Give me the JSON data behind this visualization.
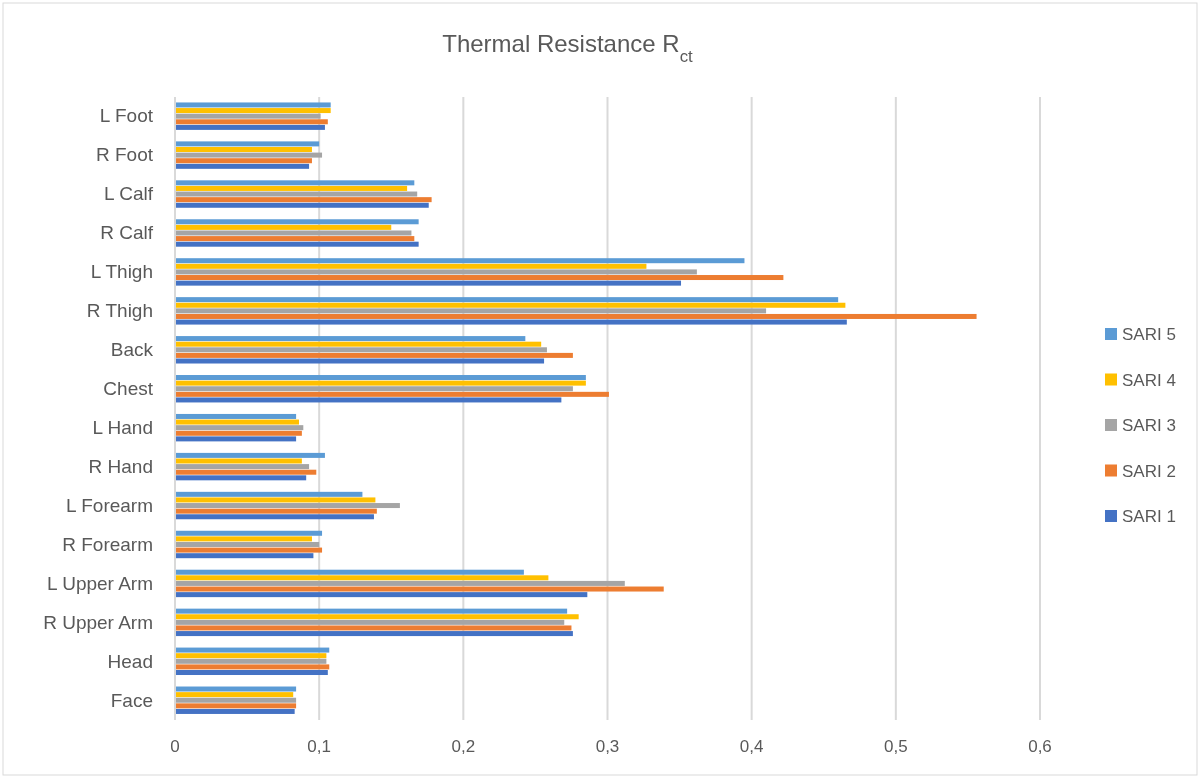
{
  "chart_data": {
    "type": "bar",
    "orientation": "horizontal",
    "title": "Thermal Resistance R$_{ct}$",
    "categories": [
      "L Foot",
      "R Foot",
      "L Calf",
      "R Calf",
      "L Thigh",
      "R Thigh",
      "Back",
      "Chest",
      "L Hand",
      "R Hand",
      "L Forearm",
      "R Forearm",
      "L Upper Arm",
      "R Upper Arm",
      "Head",
      "Face"
    ],
    "series": [
      {
        "name": "SARI 1",
        "color": "#4472c4",
        "values": [
          0.104,
          0.093,
          0.176,
          0.169,
          0.351,
          0.466,
          0.256,
          0.268,
          0.084,
          0.091,
          0.138,
          0.096,
          0.286,
          0.276,
          0.106,
          0.083
        ]
      },
      {
        "name": "SARI 2",
        "color": "#ed7d31",
        "values": [
          0.106,
          0.095,
          0.178,
          0.166,
          0.422,
          0.556,
          0.276,
          0.301,
          0.088,
          0.098,
          0.14,
          0.102,
          0.339,
          0.275,
          0.107,
          0.084
        ]
      },
      {
        "name": "SARI 3",
        "color": "#a5a5a5",
        "values": [
          0.101,
          0.102,
          0.168,
          0.164,
          0.362,
          0.41,
          0.258,
          0.276,
          0.089,
          0.093,
          0.156,
          0.1,
          0.312,
          0.27,
          0.105,
          0.084
        ]
      },
      {
        "name": "SARI 4",
        "color": "#ffc000",
        "values": [
          0.108,
          0.095,
          0.161,
          0.15,
          0.327,
          0.465,
          0.254,
          0.285,
          0.086,
          0.088,
          0.139,
          0.095,
          0.259,
          0.28,
          0.105,
          0.082
        ]
      },
      {
        "name": "SARI 5",
        "color": "#5b9bd5",
        "values": [
          0.108,
          0.1,
          0.166,
          0.169,
          0.395,
          0.46,
          0.243,
          0.285,
          0.084,
          0.104,
          0.13,
          0.102,
          0.242,
          0.272,
          0.107,
          0.084
        ]
      }
    ],
    "xlim": [
      0,
      0.6
    ],
    "xticks": [
      0,
      {
        "value": 0.1,
        "label": "0,1"
      },
      {
        "value": 0.2,
        "label": "0,2"
      },
      {
        "value": 0.3,
        "label": "0,3"
      },
      {
        "value": 0.4,
        "label": "0,4"
      },
      {
        "value": 0.5,
        "label": "0,5"
      },
      {
        "value": 0.6,
        "label": "0,6"
      }
    ],
    "grid": "x",
    "legend": "right"
  }
}
